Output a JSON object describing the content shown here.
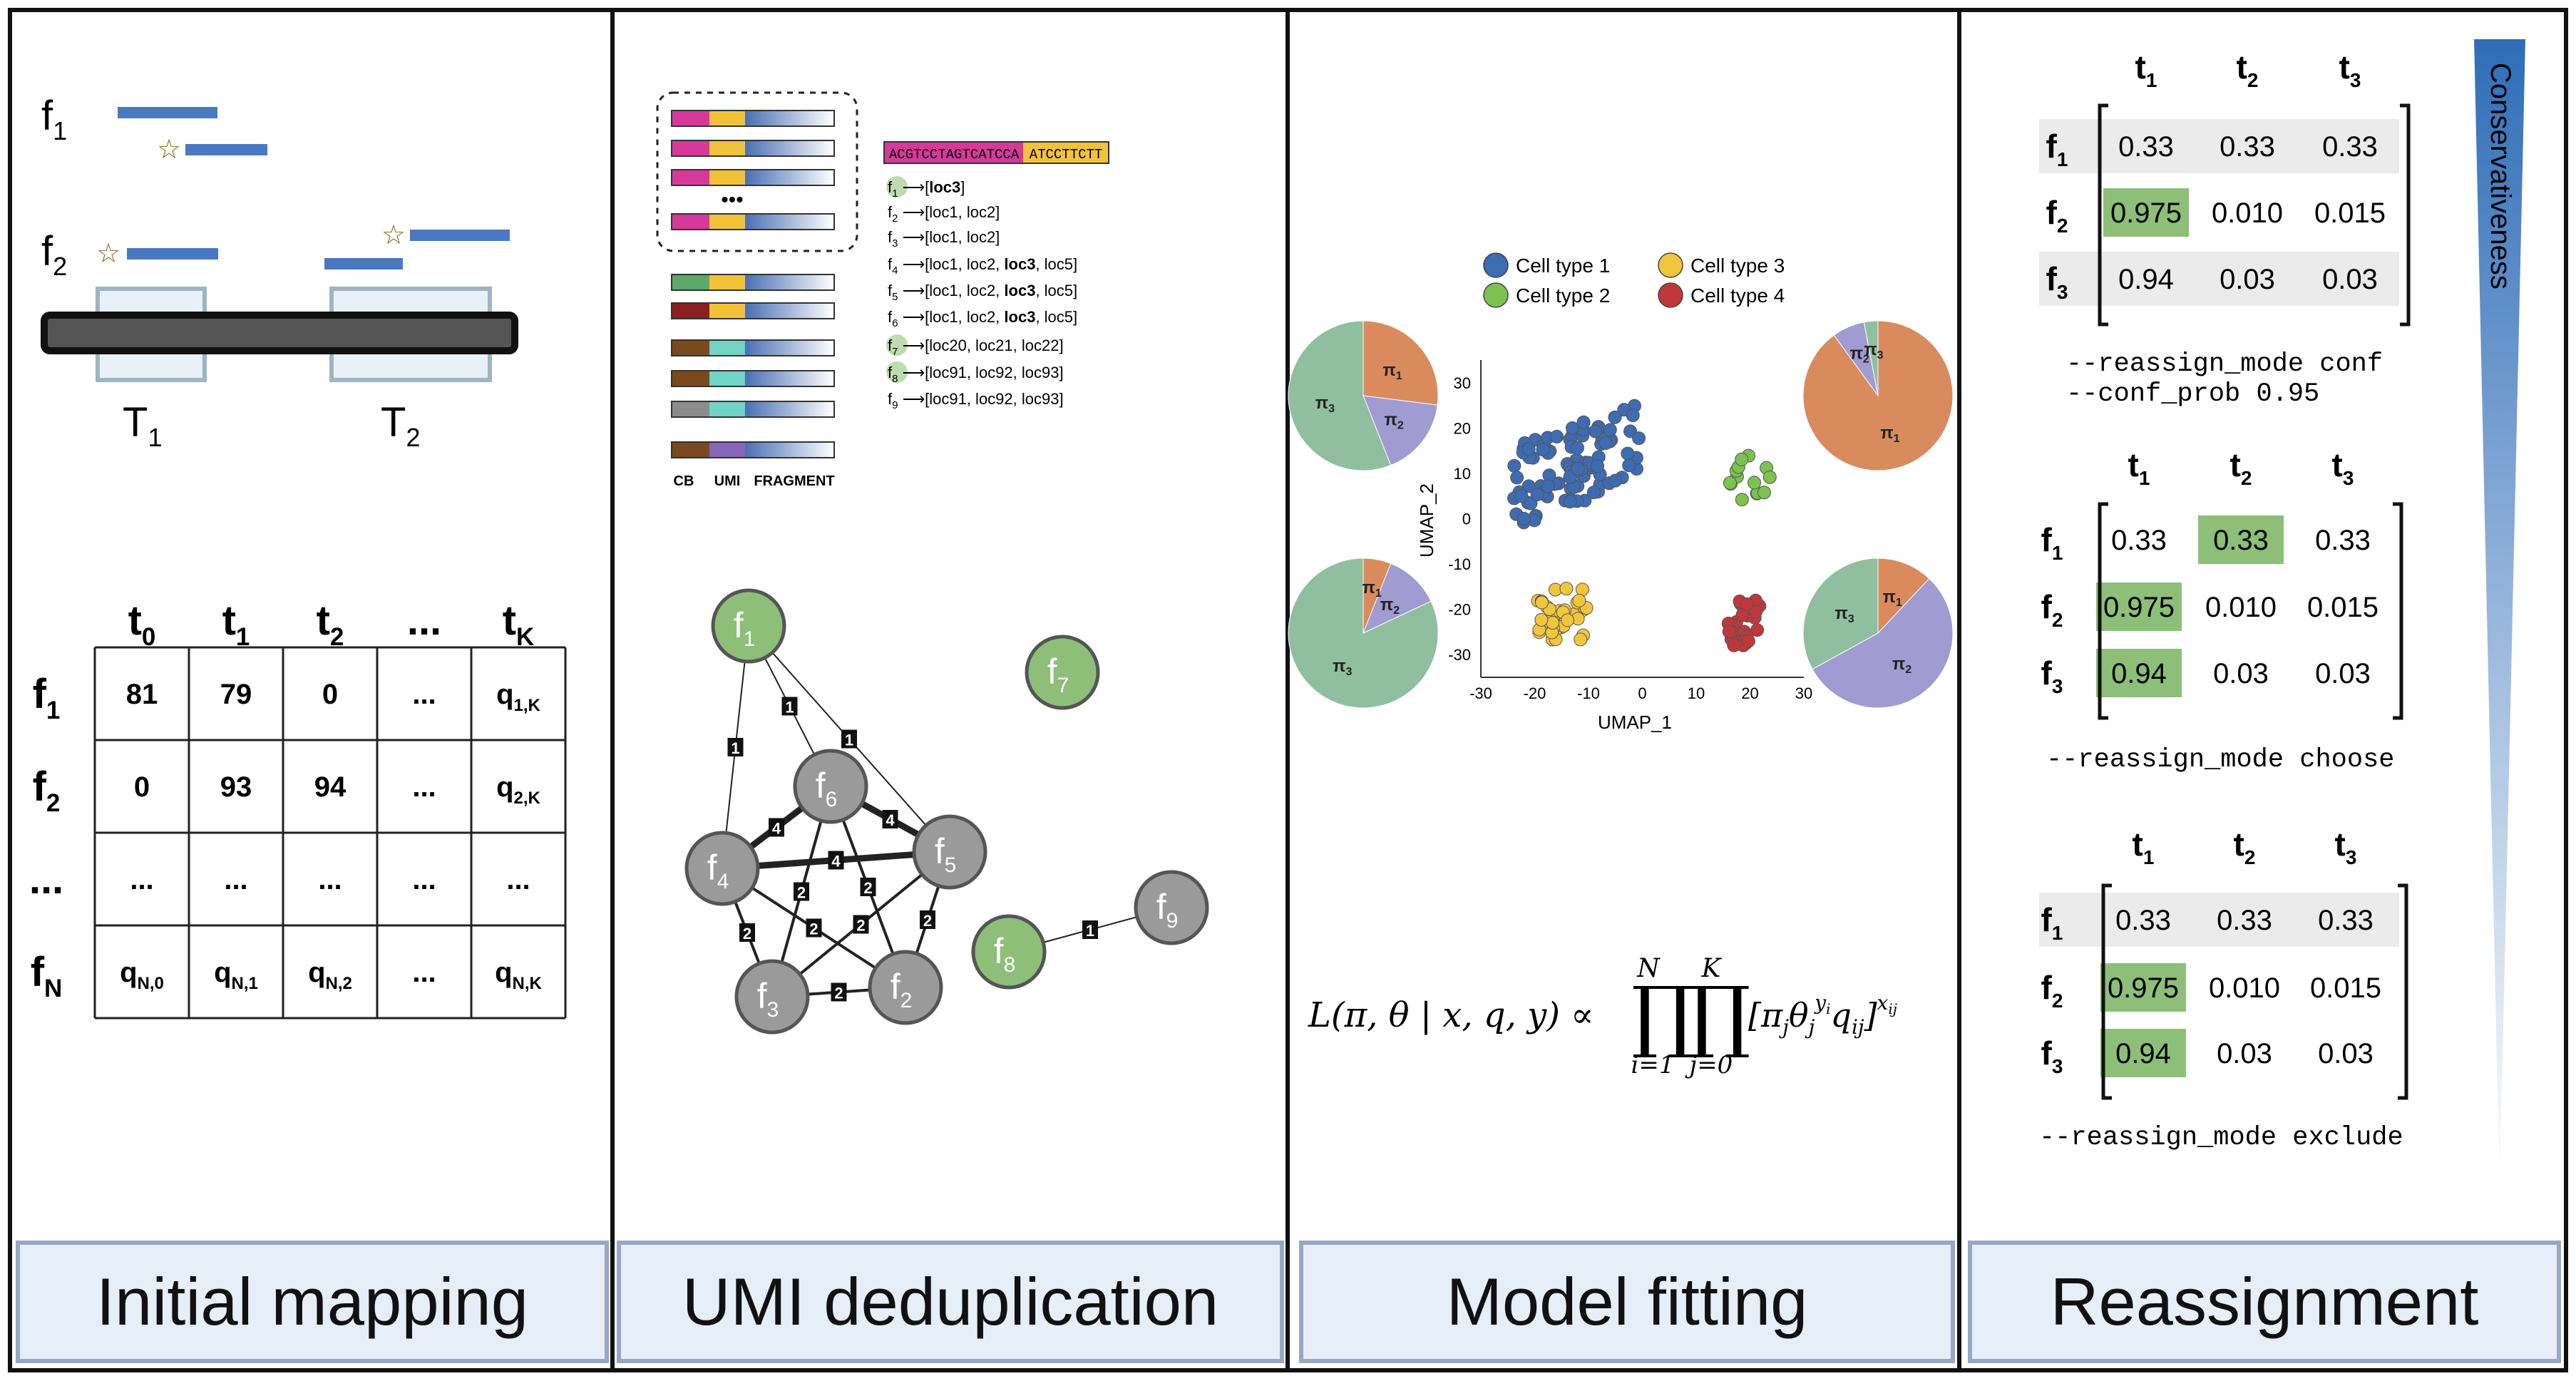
{
  "panels": {
    "initial_mapping": {
      "title": "Initial mapping",
      "fragments": {
        "f1": "f",
        "f1_sub": "1",
        "f2": "f",
        "f2_sub": "2"
      },
      "transcripts": [
        {
          "label": "T",
          "sub": "1"
        },
        {
          "label": "T",
          "sub": "2"
        }
      ],
      "matrix": {
        "col_headers": [
          {
            "t": "t",
            "sub": "0"
          },
          {
            "t": "t",
            "sub": "1"
          },
          {
            "t": "t",
            "sub": "2"
          },
          {
            "t": "...",
            "sub": ""
          },
          {
            "t": "t",
            "sub": "K"
          }
        ],
        "row_headers": [
          {
            "t": "f",
            "sub": "1"
          },
          {
            "t": "f",
            "sub": "2"
          },
          {
            "t": "...",
            "sub": ""
          },
          {
            "t": "f",
            "sub": "N"
          }
        ],
        "rows": [
          [
            {
              "v": "81",
              "s": ""
            },
            {
              "v": "79",
              "s": ""
            },
            {
              "v": "0",
              "s": ""
            },
            {
              "v": "...",
              "s": ""
            },
            {
              "v": "q",
              "s": "1,K"
            }
          ],
          [
            {
              "v": "0",
              "s": ""
            },
            {
              "v": "93",
              "s": ""
            },
            {
              "v": "94",
              "s": ""
            },
            {
              "v": "...",
              "s": ""
            },
            {
              "v": "q",
              "s": "2,K"
            }
          ],
          [
            {
              "v": "...",
              "s": ""
            },
            {
              "v": "...",
              "s": ""
            },
            {
              "v": "...",
              "s": ""
            },
            {
              "v": "...",
              "s": ""
            },
            {
              "v": "...",
              "s": ""
            }
          ],
          [
            {
              "v": "q",
              "s": "N,0"
            },
            {
              "v": "q",
              "s": "N,1"
            },
            {
              "v": "q",
              "s": "N,2"
            },
            {
              "v": "...",
              "s": ""
            },
            {
              "v": "q",
              "s": "N,K"
            }
          ]
        ]
      }
    },
    "umi_dedup": {
      "title": "UMI deduplication",
      "barcode_seq": "ACGTCCTAGTCATCCA",
      "umi_seq": "ATCCTTCTT",
      "dots": "•••",
      "read_labels": [
        "CB",
        "UMI",
        "FRAGMENT"
      ],
      "mappings": [
        {
          "f": "f",
          "sub": "1",
          "pre": "[",
          "bold": "loc3",
          "post": "]",
          "highlight": true
        },
        {
          "f": "f",
          "sub": "2",
          "pre": "[loc1, loc2]",
          "bold": "",
          "post": "",
          "highlight": false
        },
        {
          "f": "f",
          "sub": "3",
          "pre": "[loc1, loc2]",
          "bold": "",
          "post": "",
          "highlight": false
        },
        {
          "f": "f",
          "sub": "4",
          "pre": "[loc1, loc2, ",
          "bold": "loc3",
          "post": ", loc5]",
          "highlight": false
        },
        {
          "f": "f",
          "sub": "5",
          "pre": "[loc1, loc2, ",
          "bold": "loc3",
          "post": ", loc5]",
          "highlight": false
        },
        {
          "f": "f",
          "sub": "6",
          "pre": "[loc1, loc2, ",
          "bold": "loc3",
          "post": ", loc5]",
          "highlight": false
        },
        {
          "f": "f",
          "sub": "7",
          "pre": "[loc20, loc21, loc22]",
          "bold": "",
          "post": "",
          "highlight": true
        },
        {
          "f": "f",
          "sub": "8",
          "pre": "[loc91, loc92, loc93]",
          "bold": "",
          "post": "",
          "highlight": true
        },
        {
          "f": "f",
          "sub": "9",
          "pre": "[loc91, loc92, loc93]",
          "bold": "",
          "post": "",
          "highlight": false
        }
      ],
      "graph": {
        "nodes": [
          {
            "id": "f1",
            "t": "f",
            "sub": "1",
            "color": "#8dbf78"
          },
          {
            "id": "f7",
            "t": "f",
            "sub": "7",
            "color": "#8dbf78"
          },
          {
            "id": "f6",
            "t": "f",
            "sub": "6",
            "color": "#9a9a9a"
          },
          {
            "id": "f4",
            "t": "f",
            "sub": "4",
            "color": "#9a9a9a"
          },
          {
            "id": "f5",
            "t": "f",
            "sub": "5",
            "color": "#9a9a9a"
          },
          {
            "id": "f3",
            "t": "f",
            "sub": "3",
            "color": "#9a9a9a"
          },
          {
            "id": "f2",
            "t": "f",
            "sub": "2",
            "color": "#9a9a9a"
          },
          {
            "id": "f8",
            "t": "f",
            "sub": "8",
            "color": "#8dbf78"
          },
          {
            "id": "f9",
            "t": "f",
            "sub": "9",
            "color": "#9a9a9a"
          }
        ],
        "edges": [
          {
            "a": "f1",
            "b": "f4",
            "w": "1"
          },
          {
            "a": "f1",
            "b": "f6",
            "w": "1"
          },
          {
            "a": "f1",
            "b": "f5",
            "w": "1"
          },
          {
            "a": "f6",
            "b": "f4",
            "w": "4"
          },
          {
            "a": "f6",
            "b": "f5",
            "w": "4"
          },
          {
            "a": "f4",
            "b": "f5",
            "w": "4"
          },
          {
            "a": "f4",
            "b": "f3",
            "w": "2"
          },
          {
            "a": "f4",
            "b": "f2",
            "w": "2"
          },
          {
            "a": "f6",
            "b": "f3",
            "w": "2"
          },
          {
            "a": "f6",
            "b": "f2",
            "w": "2"
          },
          {
            "a": "f5",
            "b": "f3",
            "w": "2"
          },
          {
            "a": "f5",
            "b": "f2",
            "w": "2"
          },
          {
            "a": "f3",
            "b": "f2",
            "w": "2"
          },
          {
            "a": "f8",
            "b": "f9",
            "w": "1"
          }
        ]
      }
    },
    "model_fitting": {
      "title": "Model fitting",
      "legend": [
        {
          "label": "Cell type 1",
          "color": "#3d6cb3"
        },
        {
          "label": "Cell type 2",
          "color": "#7cc24f"
        },
        {
          "label": "Cell type 3",
          "color": "#f2c63c"
        },
        {
          "label": "Cell type 4",
          "color": "#c0373b"
        }
      ],
      "pie_labels": {
        "p1": "π",
        "p2": "π",
        "p3": "π",
        "s1": "1",
        "s2": "2",
        "s3": "3"
      },
      "pie_colors": {
        "c1": "#d98b5e",
        "c2": "#a09bd0",
        "c3": "#8fbf9e"
      },
      "pies": [
        {
          "name": "top-left",
          "fractions": [
            0.0,
            0.27,
            0.17,
            0.56
          ]
        },
        {
          "name": "top-right",
          "fractions": [
            0.0,
            0.9,
            0.07,
            0.03
          ]
        },
        {
          "name": "bottom-left",
          "fractions": [
            0.0,
            0.06,
            0.12,
            0.82
          ]
        },
        {
          "name": "bottom-right",
          "fractions": [
            0.0,
            0.12,
            0.55,
            0.33
          ]
        }
      ],
      "umap": {
        "xlabel": "UMAP_1",
        "ylabel": "UMAP_2",
        "xticks": [
          "-30",
          "-20",
          "-10",
          "0",
          "10",
          "20",
          "30"
        ],
        "yticks": [
          "30",
          "20",
          "10",
          "0",
          "-10",
          "-20",
          "-30"
        ]
      },
      "likelihood": {
        "lhs": "L(π, θ | x, q, y) ∝",
        "prod": "∏",
        "upper1": "N",
        "lower1": "i=1",
        "upper2": "K",
        "lower2": "j=0",
        "body": "[π",
        "j1": "j",
        "theta": "θ",
        "j2": "j",
        "yi": "y",
        "yi_sub": "i",
        "q": "q",
        "ij": "ij",
        "close": "]",
        "x": "x",
        "x_sub": "ij"
      }
    },
    "reassignment": {
      "title": "Reassignment",
      "gradient_label": "Conservativeness",
      "gradient_color": "#3a78c0",
      "col_headers": [
        "t",
        "t",
        "t"
      ],
      "col_subs": [
        "1",
        "2",
        "3"
      ],
      "row_headers": [
        "f",
        "f",
        "f"
      ],
      "row_subs": [
        "1",
        "2",
        "3"
      ],
      "tables": [
        {
          "rows": [
            [
              "0.33",
              "0.33",
              "0.33"
            ],
            [
              "0.975",
              "0.010",
              "0.015"
            ],
            [
              "0.94",
              "0.03",
              "0.03"
            ]
          ],
          "highlight": [
            [
              1,
              0
            ]
          ],
          "shaded_rows": [
            0,
            2
          ],
          "option_lines": [
            "--reassign_mode conf",
            "--conf_prob 0.95"
          ]
        },
        {
          "rows": [
            [
              "0.33",
              "0.33",
              "0.33"
            ],
            [
              "0.975",
              "0.010",
              "0.015"
            ],
            [
              "0.94",
              "0.03",
              "0.03"
            ]
          ],
          "highlight": [
            [
              0,
              1
            ],
            [
              1,
              0
            ],
            [
              2,
              0
            ]
          ],
          "shaded_rows": [],
          "option_lines": [
            "--reassign_mode choose"
          ]
        },
        {
          "rows": [
            [
              "0.33",
              "0.33",
              "0.33"
            ],
            [
              "0.975",
              "0.010",
              "0.015"
            ],
            [
              "0.94",
              "0.03",
              "0.03"
            ]
          ],
          "highlight": [
            [
              1,
              0
            ],
            [
              2,
              0
            ]
          ],
          "shaded_rows": [
            0
          ],
          "option_lines": [
            "--reassign_mode exclude"
          ]
        }
      ]
    }
  }
}
